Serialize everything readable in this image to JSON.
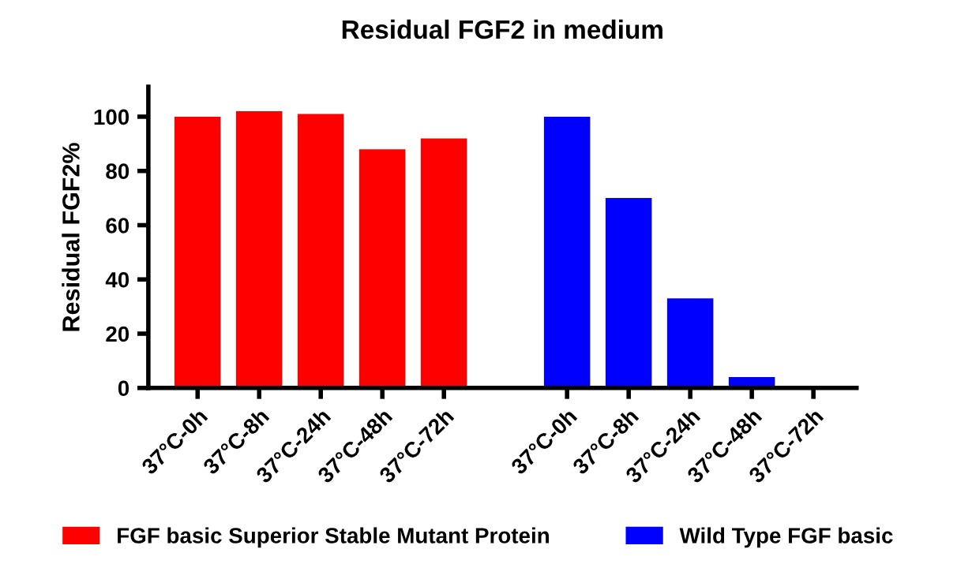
{
  "chart_data": {
    "type": "bar",
    "title": "Residual FGF2 in medium",
    "ylabel": "Residual FGF2%",
    "categories": [
      "37°C-0h",
      "37°C-8h",
      "37°C-24h",
      "37°C-48h",
      "37°C-72h",
      null,
      "37°C-0h",
      "37°C-8h",
      "37°C-24h",
      "37°C-48h",
      "37°C-72h"
    ],
    "series": [
      {
        "name": "FGF basic Superior Stable Mutant Protein",
        "color": "#ff0000",
        "values": [
          100,
          102,
          101,
          88,
          92,
          null,
          null,
          null,
          null,
          null,
          null
        ]
      },
      {
        "name": "Wild Type FGF basic",
        "color": "#0000ff",
        "values": [
          null,
          null,
          null,
          null,
          null,
          null,
          100,
          70,
          33,
          4,
          0
        ]
      }
    ],
    "ylim": [
      0,
      111
    ],
    "yticks": [
      0,
      20,
      40,
      60,
      80,
      100
    ],
    "grid": false,
    "legend": "bottom"
  }
}
